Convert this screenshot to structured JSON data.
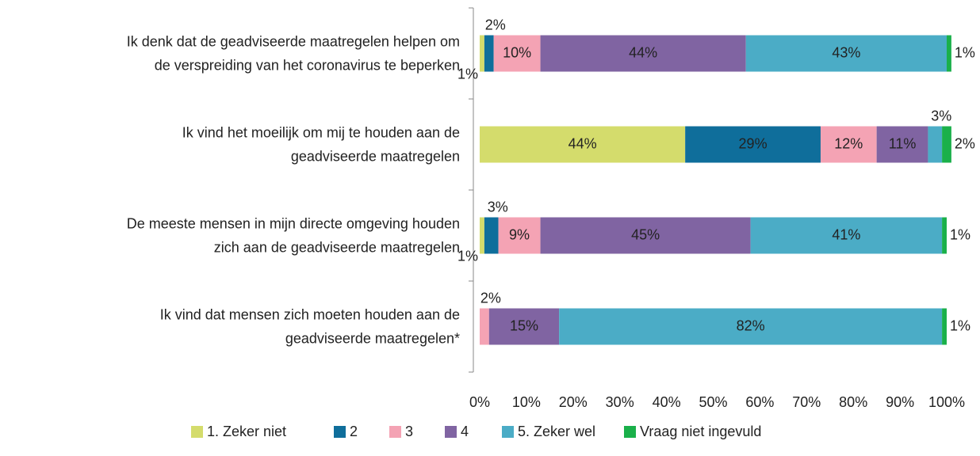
{
  "chart_data": {
    "type": "stacked-bar-horizontal",
    "categories": [
      [
        "Ik denk dat de geadviseerde maatregelen helpen om",
        "de verspreiding van het coronavirus te beperken"
      ],
      [
        "Ik vind het moeilijk om mij te houden aan de",
        "geadviseerde maatregelen"
      ],
      [
        "De meeste mensen in mijn directe omgeving houden",
        "zich aan de geadviseerde maatregelen"
      ],
      [
        "Ik vind dat mensen zich moeten houden aan de",
        "geadviseerde maatregelen*"
      ]
    ],
    "series": [
      {
        "name": "1. Zeker niet",
        "color": "#d4dc6c",
        "label_color": "#222",
        "values": [
          1,
          44,
          1,
          0
        ],
        "value_labels": [
          "1%",
          "44%",
          "1%",
          null
        ]
      },
      {
        "name": "2",
        "color": "#0f6e9b",
        "label_color": "#ffffff",
        "values": [
          2,
          29,
          3,
          0
        ],
        "value_labels": [
          "2%",
          "29%",
          "3%",
          null
        ]
      },
      {
        "name": "3",
        "color": "#f4a3b4",
        "label_color": "#222",
        "values": [
          10,
          12,
          9,
          2
        ],
        "value_labels": [
          "10%",
          "12%",
          "9%",
          "2%"
        ]
      },
      {
        "name": "4",
        "color": "#8064a2",
        "label_color": "#ffffff",
        "values": [
          44,
          11,
          45,
          15
        ],
        "value_labels": [
          "44%",
          "11%",
          "45%",
          "15%"
        ]
      },
      {
        "name": "5. Zeker wel",
        "color": "#4bacc6",
        "label_color": "#222",
        "values": [
          43,
          3,
          41,
          82
        ],
        "value_labels": [
          "43%",
          "3%",
          "41%",
          "82%"
        ]
      },
      {
        "name": "Vraag niet ingevuld",
        "color": "#1ab04a",
        "label_color": "#222",
        "values": [
          1,
          2,
          1,
          1
        ],
        "value_labels": [
          "1%",
          "2%",
          "1%",
          "1%"
        ]
      }
    ],
    "xlim": [
      0,
      100
    ],
    "xticks": [
      {
        "value": 0,
        "label": "0%"
      },
      {
        "value": 10,
        "label": "10%"
      },
      {
        "value": 20,
        "label": "20%"
      },
      {
        "value": 30,
        "label": "30%"
      },
      {
        "value": 40,
        "label": "40%"
      },
      {
        "value": 50,
        "label": "50%"
      },
      {
        "value": 60,
        "label": "60%"
      },
      {
        "value": 70,
        "label": "70%"
      },
      {
        "value": 80,
        "label": "80%"
      },
      {
        "value": 90,
        "label": "90%"
      },
      {
        "value": 100,
        "label": "100%"
      }
    ],
    "legend": "bottom"
  }
}
